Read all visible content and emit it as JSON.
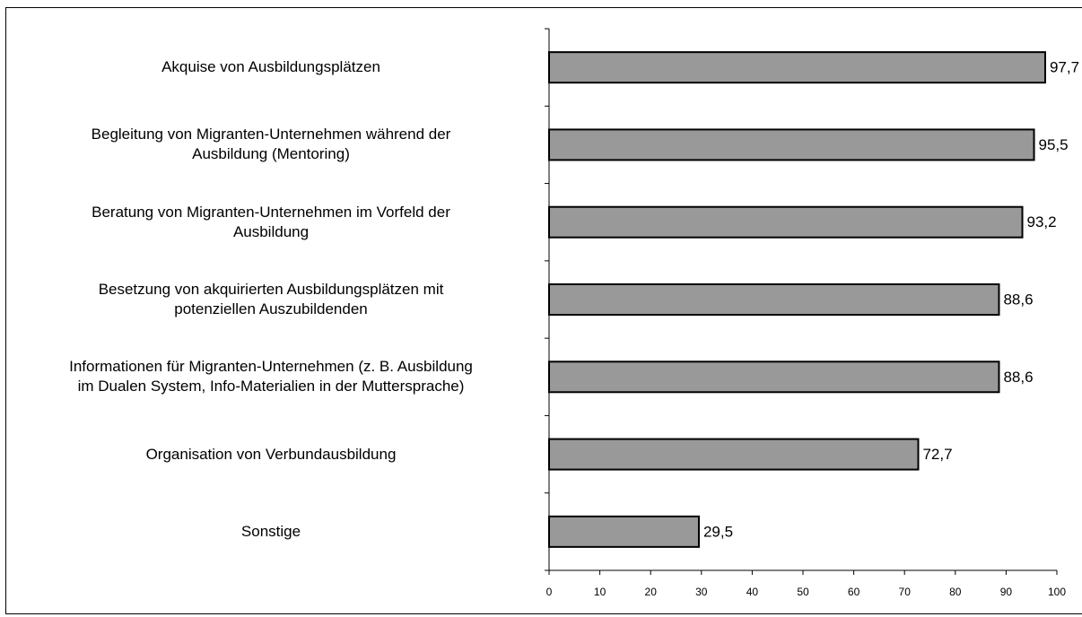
{
  "chart_data": {
    "type": "bar",
    "orientation": "horizontal",
    "categories": [
      "Akquise von Ausbildungsplätzen",
      "Begleitung von Migranten-Unternehmen während der\nAusbildung (Mentoring)",
      "Beratung von Migranten-Unternehmen im Vorfeld der\nAusbildung",
      "Besetzung von akquirierten Ausbildungsplätzen mit\npotenziellen Auszubildenden",
      "Informationen für Migranten-Unternehmen (z. B. Ausbildung\nim Dualen System, Info-Materialien in der Muttersprache)",
      "Organisation von Verbundausbildung",
      "Sonstige"
    ],
    "values": [
      97.7,
      95.5,
      93.2,
      88.6,
      88.6,
      72.7,
      29.5
    ],
    "value_labels": [
      "97,7",
      "95,5",
      "93,2",
      "88,6",
      "88,6",
      "72,7",
      "29,5"
    ],
    "color": "#999999",
    "xlim": [
      0,
      100
    ],
    "xticks": [
      0,
      10,
      20,
      30,
      40,
      50,
      60,
      70,
      80,
      90,
      100
    ],
    "grid": false
  }
}
